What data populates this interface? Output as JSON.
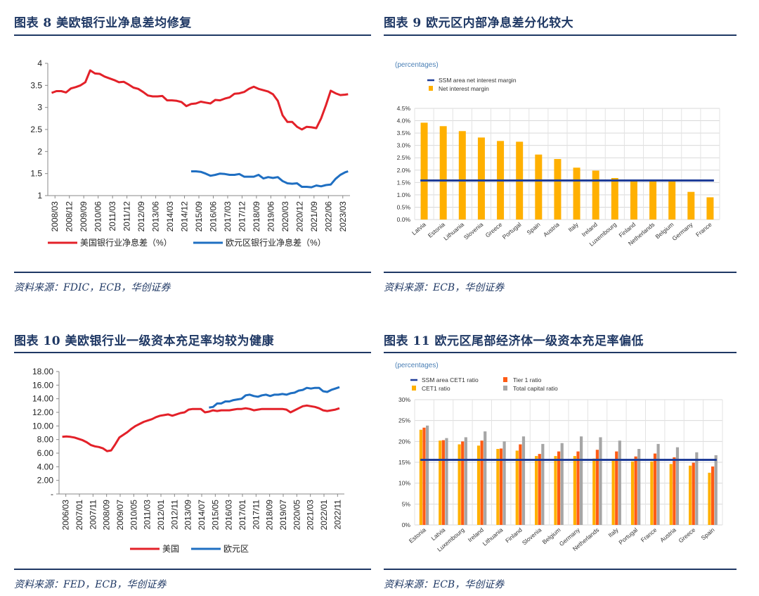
{
  "figures": [
    {
      "title": "图表 8   美欧银行业净息差均修复",
      "source": "资料来源：FDIC，ECB，华创证券"
    },
    {
      "title": "图表 9   欧元区内部净息差分化较大",
      "source": "资料来源：ECB，华创证券"
    },
    {
      "title": "图表 10   美欧银行业一级资本充足率均较为健康",
      "source": "资料来源：FED，ECB，华创证券"
    },
    {
      "title": "图表 11   欧元区尾部经济体一级资本充足率偏低",
      "source": "资料来源：ECB，华创证券"
    }
  ],
  "chart_data": [
    {
      "type": "line",
      "ylim": [
        1,
        4
      ],
      "yticks": [
        "1",
        "1.5",
        "2",
        "2.5",
        "3",
        "3.5",
        "4"
      ],
      "xticks": [
        "2008/03",
        "2008/12",
        "2009/09",
        "2010/06",
        "2011/03",
        "2011/12",
        "2012/09",
        "2013/06",
        "2014/03",
        "2014/12",
        "2015/09",
        "2016/06",
        "2017/03",
        "2017/12",
        "2018/09",
        "2019/06",
        "2020/03",
        "2020/12",
        "2021/09",
        "2022/06",
        "2023/03"
      ],
      "series": [
        {
          "name": "美国银行业净息差（%）",
          "color": "#e32129",
          "x": [
            2008.2,
            2008.45,
            2008.7,
            2008.95,
            2009.2,
            2009.45,
            2009.7,
            2009.95,
            2010.2,
            2010.45,
            2010.7,
            2010.95,
            2011.2,
            2011.45,
            2011.7,
            2011.95,
            2012.2,
            2012.45,
            2012.7,
            2012.95,
            2013.2,
            2013.45,
            2013.7,
            2013.95,
            2014.2,
            2014.45,
            2014.7,
            2014.95,
            2015.2,
            2015.45,
            2015.7,
            2015.95,
            2016.2,
            2016.45,
            2016.7,
            2016.95,
            2017.2,
            2017.45,
            2017.7,
            2017.95,
            2018.2,
            2018.45,
            2018.7,
            2018.95,
            2019.2,
            2019.45,
            2019.7,
            2019.95,
            2020.2,
            2020.45,
            2020.7,
            2020.95,
            2021.2,
            2021.45,
            2021.7,
            2021.95,
            2022.2,
            2022.45,
            2022.7,
            2022.95,
            2023.2,
            2023.45,
            2023.6
          ],
          "y": [
            3.33,
            3.37,
            3.37,
            3.34,
            3.43,
            3.46,
            3.5,
            3.57,
            3.84,
            3.77,
            3.76,
            3.7,
            3.66,
            3.62,
            3.57,
            3.58,
            3.52,
            3.45,
            3.42,
            3.35,
            3.27,
            3.25,
            3.25,
            3.26,
            3.16,
            3.16,
            3.15,
            3.12,
            3.03,
            3.08,
            3.09,
            3.13,
            3.11,
            3.09,
            3.17,
            3.16,
            3.2,
            3.23,
            3.31,
            3.32,
            3.35,
            3.42,
            3.47,
            3.42,
            3.39,
            3.36,
            3.3,
            3.15,
            2.82,
            2.67,
            2.67,
            2.56,
            2.5,
            2.56,
            2.55,
            2.53,
            2.75,
            3.05,
            3.38,
            3.32,
            3.28,
            3.29,
            3.3
          ]
        },
        {
          "name": "欧元区银行业净息差（%）",
          "color": "#1f6fc2",
          "x": [
            2015.45,
            2015.7,
            2015.95,
            2016.2,
            2016.45,
            2016.7,
            2016.95,
            2017.2,
            2017.45,
            2017.7,
            2017.95,
            2018.2,
            2018.45,
            2018.7,
            2018.95,
            2019.2,
            2019.45,
            2019.7,
            2019.95,
            2020.2,
            2020.45,
            2020.7,
            2020.95,
            2021.2,
            2021.45,
            2021.7,
            2021.95,
            2022.2,
            2022.45,
            2022.7,
            2022.95,
            2023.2,
            2023.45,
            2023.6
          ],
          "y": [
            1.55,
            1.55,
            1.54,
            1.5,
            1.45,
            1.47,
            1.5,
            1.49,
            1.47,
            1.47,
            1.49,
            1.43,
            1.43,
            1.43,
            1.47,
            1.39,
            1.42,
            1.4,
            1.42,
            1.33,
            1.28,
            1.27,
            1.28,
            1.2,
            1.2,
            1.19,
            1.23,
            1.21,
            1.24,
            1.25,
            1.38,
            1.47,
            1.53,
            1.55
          ]
        }
      ]
    },
    {
      "type": "bar",
      "note": "(percentages)",
      "categories": [
        "Latvia",
        "Estonia",
        "Lithuania",
        "Slovenia",
        "Greece",
        "Portugal",
        "Spain",
        "Austria",
        "Italy",
        "Ireland",
        "Luxembourg",
        "Finland",
        "Netherlands",
        "Belgium",
        "Germany",
        "France"
      ],
      "ylim": [
        0,
        4.5
      ],
      "yticks": [
        "0.0%",
        "0.5%",
        "1.0%",
        "1.5%",
        "2.0%",
        "2.5%",
        "3.0%",
        "3.5%",
        "4.0%",
        "4.5%"
      ],
      "series": [
        {
          "name": "Net interest margin",
          "color": "#ffb000",
          "values": [
            3.92,
            3.78,
            3.58,
            3.32,
            3.18,
            3.15,
            2.63,
            2.45,
            2.1,
            1.98,
            1.68,
            1.57,
            1.56,
            1.55,
            1.12,
            0.9
          ]
        }
      ],
      "reference_line": {
        "name": "SSM area net interest margin",
        "value": 1.58,
        "color": "#1f3d99"
      }
    },
    {
      "type": "line",
      "ylim": [
        0,
        18
      ],
      "yticks": [
        "-",
        "2.00",
        "4.00",
        "6.00",
        "8.00",
        "10.00",
        "12.00",
        "14.00",
        "16.00",
        "18.00"
      ],
      "xticks": [
        "2006/03",
        "2007/01",
        "2007/11",
        "2008/09",
        "2009/07",
        "2010/05",
        "2011/03",
        "2012/01",
        "2012/11",
        "2013/09",
        "2014/07",
        "2015/05",
        "2016/03",
        "2017/01",
        "2017/11",
        "2018/09",
        "2019/07",
        "2020/05",
        "2021/03",
        "2022/01",
        "2022/11"
      ],
      "series": [
        {
          "name": "美国",
          "color": "#e32129",
          "x": [
            2006.2,
            2006.45,
            2006.7,
            2006.95,
            2007.2,
            2007.45,
            2007.7,
            2007.95,
            2008.2,
            2008.45,
            2008.7,
            2008.95,
            2009.2,
            2009.45,
            2009.7,
            2009.95,
            2010.2,
            2010.45,
            2010.7,
            2010.95,
            2011.2,
            2011.45,
            2011.7,
            2011.95,
            2012.2,
            2012.45,
            2012.7,
            2012.95,
            2013.2,
            2013.45,
            2013.7,
            2013.95,
            2014.2,
            2014.45,
            2014.7,
            2014.95,
            2015.2,
            2015.45,
            2015.7,
            2015.95,
            2016.2,
            2016.45,
            2016.7,
            2016.95,
            2017.2,
            2017.45,
            2017.7,
            2017.95,
            2018.2,
            2018.45,
            2018.7,
            2018.95,
            2019.2,
            2019.45,
            2019.7,
            2019.95,
            2020.2,
            2020.45,
            2020.7,
            2020.95,
            2021.2,
            2021.45,
            2021.7,
            2021.95,
            2022.2,
            2022.45,
            2022.7,
            2022.95,
            2023.2
          ],
          "y": [
            8.4,
            8.45,
            8.4,
            8.3,
            8.1,
            7.9,
            7.6,
            7.2,
            7.0,
            6.9,
            6.7,
            6.3,
            6.4,
            7.3,
            8.3,
            8.7,
            9.1,
            9.6,
            10.0,
            10.3,
            10.6,
            10.8,
            11.0,
            11.3,
            11.5,
            11.6,
            11.7,
            11.5,
            11.7,
            11.9,
            12.0,
            12.4,
            12.5,
            12.5,
            12.5,
            12.0,
            12.1,
            12.3,
            12.2,
            12.3,
            12.3,
            12.3,
            12.4,
            12.5,
            12.5,
            12.6,
            12.5,
            12.3,
            12.4,
            12.5,
            12.5,
            12.5,
            12.5,
            12.5,
            12.5,
            12.4,
            12.0,
            12.3,
            12.6,
            12.9,
            13.0,
            12.9,
            12.8,
            12.6,
            12.3,
            12.2,
            12.3,
            12.4,
            12.6
          ]
        },
        {
          "name": "欧元区",
          "color": "#1f6fc2",
          "x": [
            2015.2,
            2015.45,
            2015.7,
            2015.95,
            2016.2,
            2016.45,
            2016.7,
            2016.95,
            2017.2,
            2017.45,
            2017.7,
            2017.95,
            2018.2,
            2018.45,
            2018.7,
            2018.95,
            2019.2,
            2019.45,
            2019.7,
            2019.95,
            2020.2,
            2020.45,
            2020.7,
            2020.95,
            2021.2,
            2021.45,
            2021.7,
            2021.95,
            2022.2,
            2022.45,
            2022.7,
            2022.95,
            2023.2
          ],
          "y": [
            12.7,
            12.8,
            13.3,
            13.3,
            13.6,
            13.6,
            13.8,
            13.9,
            14.0,
            14.5,
            14.6,
            14.4,
            14.3,
            14.5,
            14.6,
            14.4,
            14.6,
            14.6,
            14.7,
            14.6,
            14.8,
            14.9,
            15.2,
            15.3,
            15.6,
            15.5,
            15.6,
            15.6,
            15.1,
            15.0,
            15.3,
            15.5,
            15.7
          ]
        }
      ]
    },
    {
      "type": "bar",
      "note": "(percentages)",
      "categories": [
        "Estonia",
        "Latvia",
        "Luxembourg",
        "Ireland",
        "Lithuania",
        "Finland",
        "Slovenia",
        "Belgium",
        "Germany",
        "Netherlands",
        "Italy",
        "Portugal",
        "France",
        "Austria",
        "Greece",
        "Spain"
      ],
      "ylim": [
        0,
        30
      ],
      "yticks": [
        "0%",
        "5%",
        "10%",
        "15%",
        "20%",
        "25%",
        "30%"
      ],
      "series": [
        {
          "name": "CET1 ratio",
          "color": "#ffb000",
          "values": [
            22.8,
            20.2,
            19.3,
            19.0,
            18.2,
            17.8,
            16.5,
            16.5,
            16.5,
            15.9,
            15.8,
            15.2,
            15.2,
            14.6,
            14.2,
            12.5
          ]
        },
        {
          "name": "Tier 1 ratio",
          "color": "#ff5b14",
          "values": [
            23.3,
            20.3,
            20.0,
            20.2,
            18.3,
            19.3,
            17.0,
            17.6,
            17.6,
            18.0,
            17.6,
            16.4,
            17.1,
            16.2,
            14.9,
            14.0
          ]
        },
        {
          "name": "Total capital ratio",
          "color": "#a6a6a6",
          "values": [
            23.8,
            20.8,
            21.0,
            22.4,
            20.0,
            21.2,
            19.4,
            19.6,
            21.2,
            21.0,
            20.2,
            18.2,
            19.4,
            18.6,
            17.4,
            16.7
          ]
        }
      ],
      "reference_line": {
        "name": "SSM area CET1 ratio",
        "value": 15.6,
        "color": "#1f3d99"
      }
    }
  ]
}
